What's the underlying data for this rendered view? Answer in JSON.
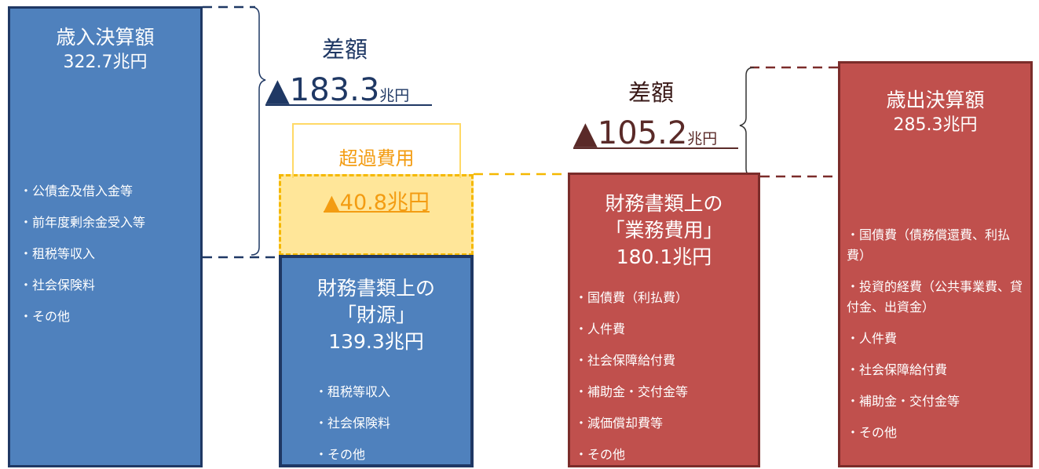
{
  "revenue": {
    "title": "歳入決算額",
    "amount": "322.7兆円",
    "items": [
      "・公債金及借入金等",
      "・前年度剰余金受入等",
      "・租税等収入",
      "・社会保険料",
      "・その他"
    ]
  },
  "diff_left": {
    "label": "差額",
    "value": "▲183.3",
    "unit": "兆円"
  },
  "excess": {
    "label": "超過費用",
    "value": "▲40.8兆円"
  },
  "financial_source": {
    "line1": "財務書類上の",
    "line2": "「財源」",
    "amount": "139.3兆円",
    "items": [
      "・租税等収入",
      "・社会保険料",
      "・その他"
    ]
  },
  "diff_right": {
    "label": "差額",
    "value": "▲105.2",
    "unit": "兆円"
  },
  "operating_cost": {
    "line1": "財務書類上の",
    "line2": "「業務費用」",
    "amount": "180.1兆円",
    "items": [
      "・国債費（利払費）",
      "・人件費",
      "・社会保障給付費",
      "・補助金・交付金等",
      "・減価償却費等",
      "・その他"
    ]
  },
  "expenditure": {
    "title": "歳出決算額",
    "amount": "285.3兆円",
    "items": [
      "・国債費（債務償還費、利払費）",
      "・投資的経費（公共事業費、貸付金、出資金）",
      "・人件費",
      "・社会保障給付費",
      "・補助金・交付金等",
      "・その他"
    ]
  }
}
